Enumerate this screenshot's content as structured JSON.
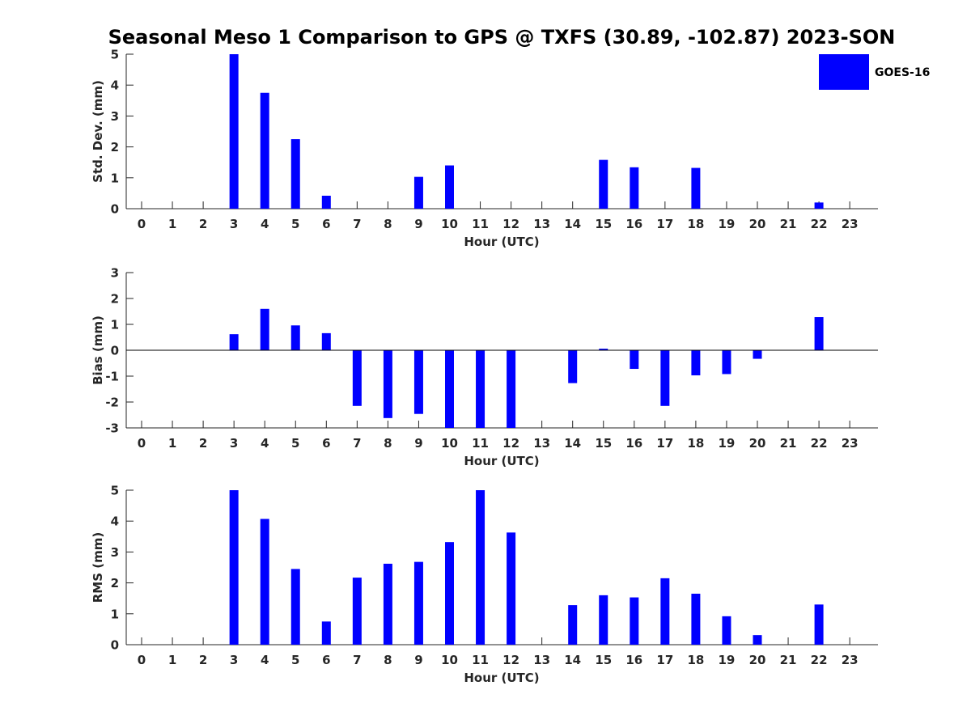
{
  "chart_data": {
    "title": "Seasonal Meso 1 Comparison to GPS @ TXFS (30.89, -102.87) 2023-SON",
    "legend": {
      "label": "GOES-16",
      "color": "#0000ff",
      "placement": "top-right"
    },
    "bar_color": "#0000ff",
    "x_tick_labels": [
      "0",
      "1",
      "2",
      "3",
      "4",
      "5",
      "6",
      "7",
      "8",
      "9",
      "10",
      "11",
      "12",
      "13",
      "14",
      "15",
      "16",
      "17",
      "18",
      "19",
      "20",
      "21",
      "22",
      "23"
    ],
    "panels": [
      {
        "type": "bar",
        "ylabel": "Std. Dev. (mm)",
        "xlabel": "Hour (UTC)",
        "ylim": [
          0,
          5
        ],
        "yticks": [
          "0",
          "1",
          "2",
          "3",
          "4",
          "5"
        ],
        "zero_line": false,
        "values": [
          null,
          null,
          null,
          5.0,
          3.75,
          2.25,
          0.42,
          null,
          null,
          1.03,
          1.4,
          null,
          null,
          null,
          null,
          1.58,
          1.34,
          null,
          1.32,
          null,
          null,
          null,
          0.2,
          null
        ]
      },
      {
        "type": "bar",
        "ylabel": "Bias (mm)",
        "xlabel": "Hour (UTC)",
        "ylim": [
          -3,
          3
        ],
        "yticks": [
          "-3",
          "-2",
          "-1",
          "0",
          "1",
          "2",
          "3"
        ],
        "zero_line": true,
        "values": [
          null,
          null,
          null,
          0.62,
          1.6,
          0.96,
          0.66,
          -2.15,
          -2.62,
          -2.46,
          -3.0,
          -3.0,
          -3.0,
          null,
          -1.27,
          0.06,
          -0.72,
          -2.15,
          -0.97,
          -0.92,
          -0.33,
          null,
          1.28,
          null
        ]
      },
      {
        "type": "bar",
        "ylabel": "RMS (mm)",
        "xlabel": "Hour (UTC)",
        "ylim": [
          0,
          5
        ],
        "yticks": [
          "0",
          "1",
          "2",
          "3",
          "4",
          "5"
        ],
        "zero_line": false,
        "values": [
          null,
          null,
          null,
          5.0,
          4.07,
          2.45,
          0.75,
          2.17,
          2.62,
          2.68,
          3.32,
          5.0,
          3.63,
          null,
          1.28,
          1.6,
          1.53,
          2.15,
          1.65,
          0.92,
          0.31,
          null,
          1.3,
          null
        ]
      }
    ]
  }
}
